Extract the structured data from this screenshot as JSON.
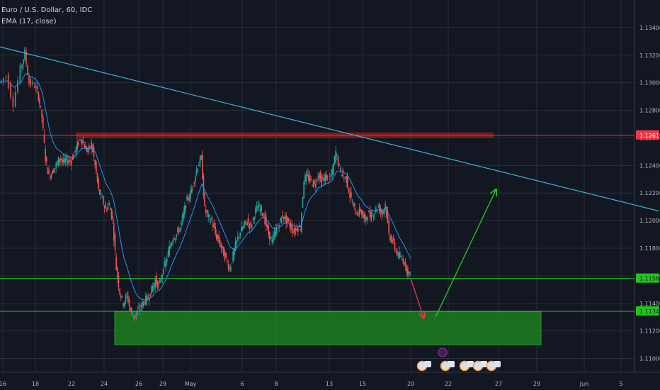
{
  "legend": {
    "symbol": "Euro / U.S. Dollar, 60, IDC",
    "indicator": "EMA (17, close)"
  },
  "colors": {
    "background": "#131722",
    "grid": "#2a2e39",
    "up_candle": "#26a69a",
    "down_candle": "#ef5350",
    "ema": "#2196f3",
    "trendline": "#3fb1d9",
    "resistance_zone": "#8b1a1a",
    "support_zone": "#1e8c1e",
    "red_level": "#f23645",
    "green_level": "#22c322",
    "projection_down": "#f23645",
    "projection_up": "#22cc22"
  },
  "chart_data": {
    "type": "line",
    "title": "Euro / U.S. Dollar, 60, IDC",
    "y_axis": {
      "ticks": [
        "1.13400",
        "1.13200",
        "1.13000",
        "1.12800",
        "1.12600",
        "1.12400",
        "1.12200",
        "1.12000",
        "1.11800",
        "1.11600",
        "1.11400",
        "1.11200",
        "1.11000"
      ],
      "range": [
        1.109,
        1.136
      ]
    },
    "x_axis": {
      "ticks": [
        "16",
        "18",
        "22",
        "24",
        "26",
        "29",
        "May",
        "6",
        "8",
        "13",
        "15",
        "20",
        "22",
        "27",
        "29",
        "Jun",
        "5"
      ]
    },
    "price_labels": [
      {
        "value": "1.12619",
        "color": "#f23645"
      },
      {
        "value": "1.11581",
        "color": "#22c322"
      },
      {
        "value": "1.11342",
        "color": "#22c322"
      }
    ],
    "levels": [
      {
        "name": "resistance",
        "price": 1.12619
      },
      {
        "name": "current",
        "price": 1.11581
      },
      {
        "name": "support",
        "price": 1.11342
      }
    ],
    "zones": [
      {
        "name": "resistance-zone",
        "price_top": 1.1264,
        "price_bottom": 1.126
      },
      {
        "name": "support-zone",
        "price_top": 1.1134,
        "price_bottom": 1.111
      }
    ],
    "trendline": {
      "start": [
        0,
        1.1326
      ],
      "end": [
        930,
        1.1207
      ]
    },
    "price_series": [
      [
        0,
        1.13
      ],
      [
        10,
        1.1305
      ],
      [
        20,
        1.1285
      ],
      [
        30,
        1.131
      ],
      [
        36,
        1.1322
      ],
      [
        42,
        1.13
      ],
      [
        50,
        1.1298
      ],
      [
        55,
        1.129
      ],
      [
        60,
        1.1275
      ],
      [
        65,
        1.1245
      ],
      [
        70,
        1.1232
      ],
      [
        75,
        1.1236
      ],
      [
        80,
        1.124
      ],
      [
        85,
        1.1246
      ],
      [
        90,
        1.1242
      ],
      [
        95,
        1.1244
      ],
      [
        100,
        1.1243
      ],
      [
        105,
        1.1248
      ],
      [
        110,
        1.1255
      ],
      [
        115,
        1.126
      ],
      [
        120,
        1.1254
      ],
      [
        125,
        1.125
      ],
      [
        130,
        1.1256
      ],
      [
        135,
        1.124
      ],
      [
        140,
        1.1222
      ],
      [
        145,
        1.1215
      ],
      [
        150,
        1.1208
      ],
      [
        155,
        1.1212
      ],
      [
        160,
        1.12
      ],
      [
        165,
        1.1165
      ],
      [
        170,
        1.1148
      ],
      [
        175,
        1.114
      ],
      [
        180,
        1.1146
      ],
      [
        185,
        1.1135
      ],
      [
        190,
        1.113
      ],
      [
        195,
        1.1134
      ],
      [
        200,
        1.1138
      ],
      [
        205,
        1.1142
      ],
      [
        210,
        1.1144
      ],
      [
        215,
        1.115
      ],
      [
        220,
        1.1157
      ],
      [
        225,
        1.1152
      ],
      [
        230,
        1.1162
      ],
      [
        235,
        1.117
      ],
      [
        240,
        1.118
      ],
      [
        245,
        1.1188
      ],
      [
        250,
        1.119
      ],
      [
        255,
        1.1195
      ],
      [
        260,
        1.1205
      ],
      [
        265,
        1.1215
      ],
      [
        270,
        1.122
      ],
      [
        275,
        1.123
      ],
      [
        280,
        1.124
      ],
      [
        285,
        1.1245
      ],
      [
        290,
        1.1208
      ],
      [
        295,
        1.1202
      ],
      [
        300,
        1.12
      ],
      [
        305,
        1.119
      ],
      [
        310,
        1.1185
      ],
      [
        315,
        1.1178
      ],
      [
        320,
        1.1172
      ],
      [
        325,
        1.1165
      ],
      [
        330,
        1.1175
      ],
      [
        335,
        1.1185
      ],
      [
        340,
        1.1192
      ],
      [
        345,
        1.1196
      ],
      [
        350,
        1.12
      ],
      [
        355,
        1.1195
      ],
      [
        360,
        1.1205
      ],
      [
        365,
        1.121
      ],
      [
        370,
        1.1208
      ],
      [
        375,
        1.12
      ],
      [
        380,
        1.119
      ],
      [
        385,
        1.1185
      ],
      [
        390,
        1.1193
      ],
      [
        395,
        1.1198
      ],
      [
        400,
        1.1204
      ],
      [
        405,
        1.12
      ],
      [
        410,
        1.1197
      ],
      [
        415,
        1.1192
      ],
      [
        420,
        1.1195
      ],
      [
        425,
        1.1195
      ],
      [
        430,
        1.123
      ],
      [
        435,
        1.1232
      ],
      [
        440,
        1.1228
      ],
      [
        445,
        1.1226
      ],
      [
        450,
        1.1234
      ],
      [
        455,
        1.1228
      ],
      [
        460,
        1.1232
      ],
      [
        465,
        1.1229
      ],
      [
        470,
        1.1235
      ],
      [
        475,
        1.125
      ],
      [
        480,
        1.1238
      ],
      [
        485,
        1.1232
      ],
      [
        490,
        1.123
      ],
      [
        495,
        1.1218
      ],
      [
        500,
        1.121
      ],
      [
        505,
        1.1205
      ],
      [
        510,
        1.1208
      ],
      [
        515,
        1.12
      ],
      [
        520,
        1.1205
      ],
      [
        525,
        1.1203
      ],
      [
        530,
        1.1207
      ],
      [
        535,
        1.121
      ],
      [
        540,
        1.1205
      ],
      [
        545,
        1.1212
      ],
      [
        550,
        1.119
      ],
      [
        555,
        1.1185
      ],
      [
        560,
        1.1178
      ],
      [
        565,
        1.1173
      ],
      [
        570,
        1.1172
      ],
      [
        575,
        1.1165
      ],
      [
        580,
        1.116
      ]
    ],
    "projections": [
      {
        "name": "projected-drop",
        "from": [
          580,
          1.1158
        ],
        "to": [
          598,
          1.113
        ]
      },
      {
        "name": "projected-rise",
        "from": [
          615,
          1.113
        ],
        "to": [
          700,
          1.1222
        ]
      }
    ]
  }
}
